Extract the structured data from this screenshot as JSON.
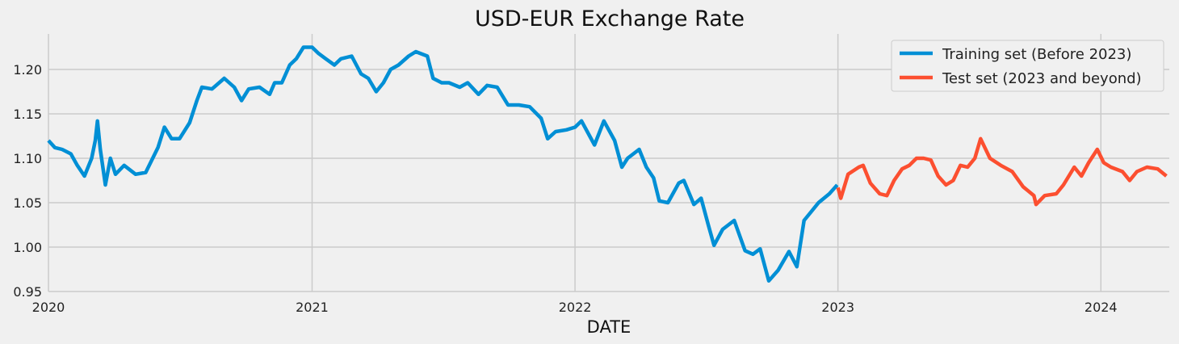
{
  "chart_data": {
    "type": "line",
    "title": "USD-EUR Exchange Rate",
    "xlabel": "DATE",
    "ylabel": "",
    "xlim": [
      "2020-01-01",
      "2024-04-05"
    ],
    "ylim": [
      0.95,
      1.24
    ],
    "xticks": [
      {
        "date": "2020-01-01",
        "label": "2020"
      },
      {
        "date": "2021-01-01",
        "label": "2021"
      },
      {
        "date": "2022-01-01",
        "label": "2022"
      },
      {
        "date": "2023-01-01",
        "label": "2023"
      },
      {
        "date": "2024-01-01",
        "label": "2024"
      }
    ],
    "yticks": [
      0.95,
      1.0,
      1.05,
      1.1,
      1.15,
      1.2
    ],
    "ytick_labels": [
      "0.95",
      "1.00",
      "1.05",
      "1.10",
      "1.15",
      "1.20"
    ],
    "grid": true,
    "legend_position": "top-right",
    "series": [
      {
        "name": "Training set (Before 2023)",
        "color": "#008fd5",
        "points": [
          [
            "2020-01-01",
            1.12
          ],
          [
            "2020-01-10",
            1.112
          ],
          [
            "2020-01-20",
            1.11
          ],
          [
            "2020-02-01",
            1.105
          ],
          [
            "2020-02-10",
            1.092
          ],
          [
            "2020-02-20",
            1.08
          ],
          [
            "2020-03-01",
            1.1
          ],
          [
            "2020-03-06",
            1.12
          ],
          [
            "2020-03-09",
            1.142
          ],
          [
            "2020-03-13",
            1.11
          ],
          [
            "2020-03-20",
            1.07
          ],
          [
            "2020-03-27",
            1.1
          ],
          [
            "2020-04-03",
            1.082
          ],
          [
            "2020-04-15",
            1.092
          ],
          [
            "2020-05-01",
            1.082
          ],
          [
            "2020-05-15",
            1.084
          ],
          [
            "2020-06-01",
            1.112
          ],
          [
            "2020-06-10",
            1.135
          ],
          [
            "2020-06-20",
            1.122
          ],
          [
            "2020-07-01",
            1.122
          ],
          [
            "2020-07-15",
            1.14
          ],
          [
            "2020-07-25",
            1.165
          ],
          [
            "2020-08-01",
            1.18
          ],
          [
            "2020-08-15",
            1.178
          ],
          [
            "2020-09-01",
            1.19
          ],
          [
            "2020-09-15",
            1.18
          ],
          [
            "2020-09-25",
            1.165
          ],
          [
            "2020-10-05",
            1.178
          ],
          [
            "2020-10-20",
            1.18
          ],
          [
            "2020-11-03",
            1.172
          ],
          [
            "2020-11-10",
            1.185
          ],
          [
            "2020-11-20",
            1.185
          ],
          [
            "2020-12-01",
            1.205
          ],
          [
            "2020-12-10",
            1.212
          ],
          [
            "2020-12-20",
            1.225
          ],
          [
            "2021-01-01",
            1.225
          ],
          [
            "2021-01-10",
            1.218
          ],
          [
            "2021-01-20",
            1.212
          ],
          [
            "2021-02-01",
            1.205
          ],
          [
            "2021-02-10",
            1.212
          ],
          [
            "2021-02-25",
            1.215
          ],
          [
            "2021-03-10",
            1.195
          ],
          [
            "2021-03-20",
            1.19
          ],
          [
            "2021-03-31",
            1.175
          ],
          [
            "2021-04-10",
            1.185
          ],
          [
            "2021-04-20",
            1.2
          ],
          [
            "2021-05-01",
            1.205
          ],
          [
            "2021-05-15",
            1.215
          ],
          [
            "2021-05-25",
            1.22
          ],
          [
            "2021-06-10",
            1.215
          ],
          [
            "2021-06-18",
            1.19
          ],
          [
            "2021-06-30",
            1.185
          ],
          [
            "2021-07-10",
            1.185
          ],
          [
            "2021-07-25",
            1.18
          ],
          [
            "2021-08-05",
            1.185
          ],
          [
            "2021-08-20",
            1.172
          ],
          [
            "2021-09-01",
            1.182
          ],
          [
            "2021-09-15",
            1.18
          ],
          [
            "2021-09-30",
            1.16
          ],
          [
            "2021-10-15",
            1.16
          ],
          [
            "2021-10-30",
            1.158
          ],
          [
            "2021-11-15",
            1.145
          ],
          [
            "2021-11-24",
            1.122
          ],
          [
            "2021-12-05",
            1.13
          ],
          [
            "2021-12-20",
            1.132
          ],
          [
            "2022-01-01",
            1.135
          ],
          [
            "2022-01-10",
            1.142
          ],
          [
            "2022-01-28",
            1.115
          ],
          [
            "2022-02-10",
            1.142
          ],
          [
            "2022-02-25",
            1.12
          ],
          [
            "2022-03-07",
            1.09
          ],
          [
            "2022-03-15",
            1.1
          ],
          [
            "2022-03-31",
            1.11
          ],
          [
            "2022-04-10",
            1.09
          ],
          [
            "2022-04-20",
            1.078
          ],
          [
            "2022-04-28",
            1.052
          ],
          [
            "2022-05-10",
            1.05
          ],
          [
            "2022-05-25",
            1.072
          ],
          [
            "2022-06-01",
            1.075
          ],
          [
            "2022-06-15",
            1.048
          ],
          [
            "2022-06-25",
            1.055
          ],
          [
            "2022-07-05",
            1.025
          ],
          [
            "2022-07-13",
            1.002
          ],
          [
            "2022-07-25",
            1.02
          ],
          [
            "2022-08-10",
            1.03
          ],
          [
            "2022-08-25",
            0.996
          ],
          [
            "2022-09-05",
            0.992
          ],
          [
            "2022-09-15",
            0.998
          ],
          [
            "2022-09-27",
            0.962
          ],
          [
            "2022-10-10",
            0.974
          ],
          [
            "2022-10-25",
            0.995
          ],
          [
            "2022-11-05",
            0.978
          ],
          [
            "2022-11-15",
            1.03
          ],
          [
            "2022-11-25",
            1.04
          ],
          [
            "2022-12-05",
            1.05
          ],
          [
            "2022-12-20",
            1.06
          ],
          [
            "2022-12-31",
            1.07
          ]
        ]
      },
      {
        "name": "Test set (2023 and beyond)",
        "color": "#fc4f30",
        "points": [
          [
            "2023-01-01",
            1.067
          ],
          [
            "2023-01-05",
            1.055
          ],
          [
            "2023-01-15",
            1.082
          ],
          [
            "2023-01-30",
            1.09
          ],
          [
            "2023-02-05",
            1.092
          ],
          [
            "2023-02-15",
            1.072
          ],
          [
            "2023-02-28",
            1.06
          ],
          [
            "2023-03-10",
            1.058
          ],
          [
            "2023-03-20",
            1.075
          ],
          [
            "2023-03-31",
            1.088
          ],
          [
            "2023-04-10",
            1.092
          ],
          [
            "2023-04-20",
            1.1
          ],
          [
            "2023-04-30",
            1.1
          ],
          [
            "2023-05-10",
            1.098
          ],
          [
            "2023-05-20",
            1.08
          ],
          [
            "2023-05-31",
            1.07
          ],
          [
            "2023-06-10",
            1.075
          ],
          [
            "2023-06-20",
            1.092
          ],
          [
            "2023-06-30",
            1.09
          ],
          [
            "2023-07-10",
            1.1
          ],
          [
            "2023-07-18",
            1.122
          ],
          [
            "2023-07-31",
            1.1
          ],
          [
            "2023-08-15",
            1.092
          ],
          [
            "2023-08-31",
            1.085
          ],
          [
            "2023-09-15",
            1.068
          ],
          [
            "2023-09-30",
            1.058
          ],
          [
            "2023-10-03",
            1.048
          ],
          [
            "2023-10-15",
            1.058
          ],
          [
            "2023-10-31",
            1.06
          ],
          [
            "2023-11-10",
            1.07
          ],
          [
            "2023-11-25",
            1.09
          ],
          [
            "2023-12-05",
            1.08
          ],
          [
            "2023-12-15",
            1.095
          ],
          [
            "2023-12-27",
            1.11
          ],
          [
            "2024-01-05",
            1.095
          ],
          [
            "2024-01-15",
            1.09
          ],
          [
            "2024-01-31",
            1.085
          ],
          [
            "2024-02-10",
            1.075
          ],
          [
            "2024-02-20",
            1.085
          ],
          [
            "2024-03-05",
            1.09
          ],
          [
            "2024-03-20",
            1.088
          ],
          [
            "2024-04-01",
            1.08
          ]
        ]
      }
    ]
  }
}
